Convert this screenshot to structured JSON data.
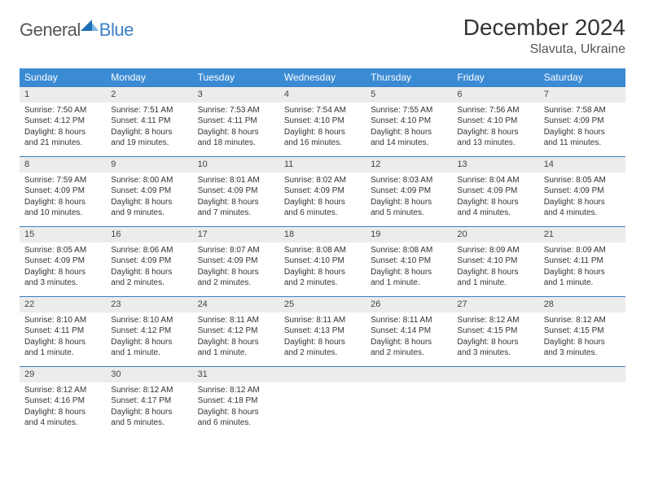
{
  "logo": {
    "general": "General",
    "blue": "Blue"
  },
  "title": "December 2024",
  "location": "Slavuta, Ukraine",
  "colors": {
    "header_bg": "#3b8bd4",
    "header_text": "#ffffff",
    "border": "#3b7fc4",
    "daynum_bg": "#ececec",
    "logo_accent": "#1f6fb3"
  },
  "weekdays": [
    "Sunday",
    "Monday",
    "Tuesday",
    "Wednesday",
    "Thursday",
    "Friday",
    "Saturday"
  ],
  "weeks": [
    [
      {
        "n": "1",
        "sr": "Sunrise: 7:50 AM",
        "ss": "Sunset: 4:12 PM",
        "dl": "Daylight: 8 hours and 21 minutes."
      },
      {
        "n": "2",
        "sr": "Sunrise: 7:51 AM",
        "ss": "Sunset: 4:11 PM",
        "dl": "Daylight: 8 hours and 19 minutes."
      },
      {
        "n": "3",
        "sr": "Sunrise: 7:53 AM",
        "ss": "Sunset: 4:11 PM",
        "dl": "Daylight: 8 hours and 18 minutes."
      },
      {
        "n": "4",
        "sr": "Sunrise: 7:54 AM",
        "ss": "Sunset: 4:10 PM",
        "dl": "Daylight: 8 hours and 16 minutes."
      },
      {
        "n": "5",
        "sr": "Sunrise: 7:55 AM",
        "ss": "Sunset: 4:10 PM",
        "dl": "Daylight: 8 hours and 14 minutes."
      },
      {
        "n": "6",
        "sr": "Sunrise: 7:56 AM",
        "ss": "Sunset: 4:10 PM",
        "dl": "Daylight: 8 hours and 13 minutes."
      },
      {
        "n": "7",
        "sr": "Sunrise: 7:58 AM",
        "ss": "Sunset: 4:09 PM",
        "dl": "Daylight: 8 hours and 11 minutes."
      }
    ],
    [
      {
        "n": "8",
        "sr": "Sunrise: 7:59 AM",
        "ss": "Sunset: 4:09 PM",
        "dl": "Daylight: 8 hours and 10 minutes."
      },
      {
        "n": "9",
        "sr": "Sunrise: 8:00 AM",
        "ss": "Sunset: 4:09 PM",
        "dl": "Daylight: 8 hours and 9 minutes."
      },
      {
        "n": "10",
        "sr": "Sunrise: 8:01 AM",
        "ss": "Sunset: 4:09 PM",
        "dl": "Daylight: 8 hours and 7 minutes."
      },
      {
        "n": "11",
        "sr": "Sunrise: 8:02 AM",
        "ss": "Sunset: 4:09 PM",
        "dl": "Daylight: 8 hours and 6 minutes."
      },
      {
        "n": "12",
        "sr": "Sunrise: 8:03 AM",
        "ss": "Sunset: 4:09 PM",
        "dl": "Daylight: 8 hours and 5 minutes."
      },
      {
        "n": "13",
        "sr": "Sunrise: 8:04 AM",
        "ss": "Sunset: 4:09 PM",
        "dl": "Daylight: 8 hours and 4 minutes."
      },
      {
        "n": "14",
        "sr": "Sunrise: 8:05 AM",
        "ss": "Sunset: 4:09 PM",
        "dl": "Daylight: 8 hours and 4 minutes."
      }
    ],
    [
      {
        "n": "15",
        "sr": "Sunrise: 8:05 AM",
        "ss": "Sunset: 4:09 PM",
        "dl": "Daylight: 8 hours and 3 minutes."
      },
      {
        "n": "16",
        "sr": "Sunrise: 8:06 AM",
        "ss": "Sunset: 4:09 PM",
        "dl": "Daylight: 8 hours and 2 minutes."
      },
      {
        "n": "17",
        "sr": "Sunrise: 8:07 AM",
        "ss": "Sunset: 4:09 PM",
        "dl": "Daylight: 8 hours and 2 minutes."
      },
      {
        "n": "18",
        "sr": "Sunrise: 8:08 AM",
        "ss": "Sunset: 4:10 PM",
        "dl": "Daylight: 8 hours and 2 minutes."
      },
      {
        "n": "19",
        "sr": "Sunrise: 8:08 AM",
        "ss": "Sunset: 4:10 PM",
        "dl": "Daylight: 8 hours and 1 minute."
      },
      {
        "n": "20",
        "sr": "Sunrise: 8:09 AM",
        "ss": "Sunset: 4:10 PM",
        "dl": "Daylight: 8 hours and 1 minute."
      },
      {
        "n": "21",
        "sr": "Sunrise: 8:09 AM",
        "ss": "Sunset: 4:11 PM",
        "dl": "Daylight: 8 hours and 1 minute."
      }
    ],
    [
      {
        "n": "22",
        "sr": "Sunrise: 8:10 AM",
        "ss": "Sunset: 4:11 PM",
        "dl": "Daylight: 8 hours and 1 minute."
      },
      {
        "n": "23",
        "sr": "Sunrise: 8:10 AM",
        "ss": "Sunset: 4:12 PM",
        "dl": "Daylight: 8 hours and 1 minute."
      },
      {
        "n": "24",
        "sr": "Sunrise: 8:11 AM",
        "ss": "Sunset: 4:12 PM",
        "dl": "Daylight: 8 hours and 1 minute."
      },
      {
        "n": "25",
        "sr": "Sunrise: 8:11 AM",
        "ss": "Sunset: 4:13 PM",
        "dl": "Daylight: 8 hours and 2 minutes."
      },
      {
        "n": "26",
        "sr": "Sunrise: 8:11 AM",
        "ss": "Sunset: 4:14 PM",
        "dl": "Daylight: 8 hours and 2 minutes."
      },
      {
        "n": "27",
        "sr": "Sunrise: 8:12 AM",
        "ss": "Sunset: 4:15 PM",
        "dl": "Daylight: 8 hours and 3 minutes."
      },
      {
        "n": "28",
        "sr": "Sunrise: 8:12 AM",
        "ss": "Sunset: 4:15 PM",
        "dl": "Daylight: 8 hours and 3 minutes."
      }
    ],
    [
      {
        "n": "29",
        "sr": "Sunrise: 8:12 AM",
        "ss": "Sunset: 4:16 PM",
        "dl": "Daylight: 8 hours and 4 minutes."
      },
      {
        "n": "30",
        "sr": "Sunrise: 8:12 AM",
        "ss": "Sunset: 4:17 PM",
        "dl": "Daylight: 8 hours and 5 minutes."
      },
      {
        "n": "31",
        "sr": "Sunrise: 8:12 AM",
        "ss": "Sunset: 4:18 PM",
        "dl": "Daylight: 8 hours and 6 minutes."
      },
      null,
      null,
      null,
      null
    ]
  ]
}
